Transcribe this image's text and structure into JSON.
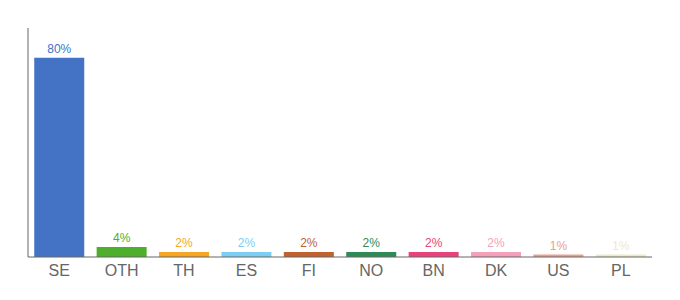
{
  "chart_data": {
    "type": "bar",
    "categories": [
      "SE",
      "OTH",
      "TH",
      "ES",
      "FI",
      "NO",
      "BN",
      "DK",
      "US",
      "PL"
    ],
    "values": [
      80,
      4,
      2,
      2,
      2,
      2,
      2,
      2,
      1,
      1
    ],
    "value_labels": [
      "80%",
      "4%",
      "2%",
      "2%",
      "2%",
      "2%",
      "2%",
      "2%",
      "1%",
      "1%"
    ],
    "colors": [
      "#4472c4",
      "#4daf2b",
      "#f5a623",
      "#7ecef4",
      "#c0622e",
      "#2e8b57",
      "#e8437a",
      "#f4a0b8",
      "#e8a090",
      "#f0e8c8"
    ],
    "ylim": [
      0,
      92
    ],
    "data_labels": true,
    "tick_labels": "x",
    "grid": false
  }
}
